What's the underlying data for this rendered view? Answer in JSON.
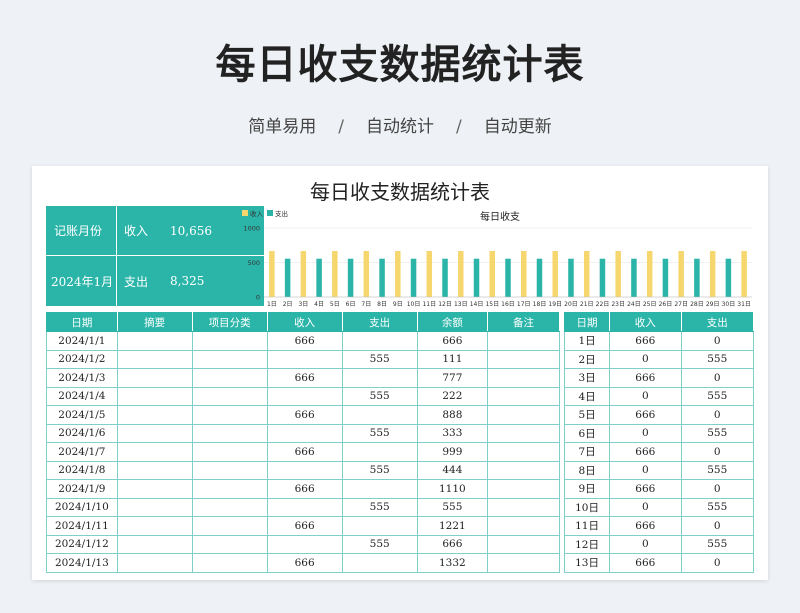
{
  "header": {
    "title": "每日收支数据统计表",
    "tags": [
      "简单易用",
      "自动统计",
      "自动更新"
    ],
    "separator": "/"
  },
  "sheet": {
    "title": "每日收支数据统计表",
    "summary": {
      "month_label": "记账月份",
      "month_value": "2024年1月",
      "income_label": "收入",
      "income_value": "10,656",
      "expense_label": "支出",
      "expense_value": "8,325"
    },
    "colors": {
      "accent": "#2bb5a8",
      "income_bar": "#f5d76e",
      "expense_bar": "#2bb5a8"
    }
  },
  "chart_data": {
    "type": "bar",
    "title": "每日收支",
    "categories": [
      "1日",
      "2日",
      "3日",
      "4日",
      "5日",
      "6日",
      "7日",
      "8日",
      "9日",
      "10日",
      "11日",
      "12日",
      "13日",
      "14日",
      "15日",
      "16日",
      "17日",
      "18日",
      "19日",
      "20日",
      "21日",
      "22日",
      "23日",
      "24日",
      "25日",
      "26日",
      "27日",
      "28日",
      "29日",
      "30日",
      "31日"
    ],
    "series": [
      {
        "name": "收入",
        "values": [
          666,
          0,
          666,
          0,
          666,
          0,
          666,
          0,
          666,
          0,
          666,
          0,
          666,
          0,
          666,
          0,
          666,
          0,
          666,
          0,
          666,
          0,
          666,
          0,
          666,
          0,
          666,
          0,
          666,
          0,
          666
        ]
      },
      {
        "name": "支出",
        "values": [
          0,
          555,
          0,
          555,
          0,
          555,
          0,
          555,
          0,
          555,
          0,
          555,
          0,
          555,
          0,
          555,
          0,
          555,
          0,
          555,
          0,
          555,
          0,
          555,
          0,
          555,
          0,
          555,
          0,
          555,
          0
        ]
      }
    ],
    "yticks": [
      "1000",
      "500",
      "0"
    ],
    "ylim": [
      0,
      1000
    ],
    "legend": "top-left"
  },
  "main_table": {
    "headers": [
      "日期",
      "摘要",
      "项目分类",
      "收入",
      "支出",
      "余额",
      "备注"
    ],
    "rows": [
      [
        "2024/1/1",
        "",
        "",
        "666",
        "",
        "666",
        ""
      ],
      [
        "2024/1/2",
        "",
        "",
        "",
        "555",
        "111",
        ""
      ],
      [
        "2024/1/3",
        "",
        "",
        "666",
        "",
        "777",
        ""
      ],
      [
        "2024/1/4",
        "",
        "",
        "",
        "555",
        "222",
        ""
      ],
      [
        "2024/1/5",
        "",
        "",
        "666",
        "",
        "888",
        ""
      ],
      [
        "2024/1/6",
        "",
        "",
        "",
        "555",
        "333",
        ""
      ],
      [
        "2024/1/7",
        "",
        "",
        "666",
        "",
        "999",
        ""
      ],
      [
        "2024/1/8",
        "",
        "",
        "",
        "555",
        "444",
        ""
      ],
      [
        "2024/1/9",
        "",
        "",
        "666",
        "",
        "1110",
        ""
      ],
      [
        "2024/1/10",
        "",
        "",
        "",
        "555",
        "555",
        ""
      ],
      [
        "2024/1/11",
        "",
        "",
        "666",
        "",
        "1221",
        ""
      ],
      [
        "2024/1/12",
        "",
        "",
        "",
        "555",
        "666",
        ""
      ],
      [
        "2024/1/13",
        "",
        "",
        "666",
        "",
        "1332",
        ""
      ]
    ]
  },
  "side_table": {
    "headers": [
      "日期",
      "收入",
      "支出"
    ],
    "rows": [
      [
        "1日",
        "666",
        "0"
      ],
      [
        "2日",
        "0",
        "555"
      ],
      [
        "3日",
        "666",
        "0"
      ],
      [
        "4日",
        "0",
        "555"
      ],
      [
        "5日",
        "666",
        "0"
      ],
      [
        "6日",
        "0",
        "555"
      ],
      [
        "7日",
        "666",
        "0"
      ],
      [
        "8日",
        "0",
        "555"
      ],
      [
        "9日",
        "666",
        "0"
      ],
      [
        "10日",
        "0",
        "555"
      ],
      [
        "11日",
        "666",
        "0"
      ],
      [
        "12日",
        "0",
        "555"
      ],
      [
        "13日",
        "666",
        "0"
      ]
    ]
  }
}
